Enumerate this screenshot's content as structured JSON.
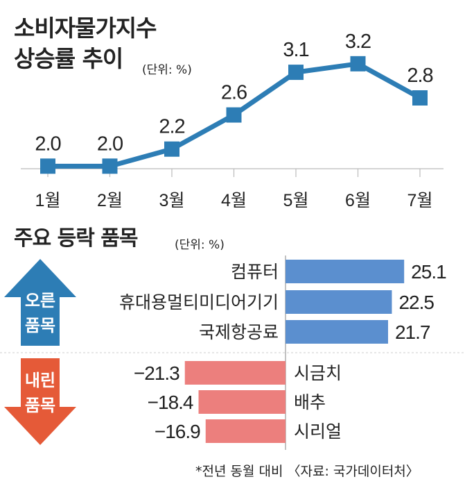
{
  "title_line1": "소비자물가지수",
  "title_line2": "상승률 추이",
  "unit_top": "(단위: %)",
  "section2_title": "주요 등락 품목",
  "unit_bottom": "(단위: %)",
  "footnote": "*전년 동월 대비 〈자료: 국가데이터처〉",
  "colors": {
    "line": "#2d7db5",
    "rise_bar": "#5b8fcf",
    "fall_bar": "#ec7f7d",
    "up_arrow": "#2d7db5",
    "down_arrow": "#e55a38"
  },
  "chart_data": [
    {
      "type": "line",
      "categories": [
        "1월",
        "2월",
        "3월",
        "4월",
        "5월",
        "6월",
        "7월"
      ],
      "values": [
        2.0,
        2.0,
        2.2,
        2.6,
        3.1,
        3.2,
        2.8
      ],
      "value_labels": [
        "2.0",
        "2.0",
        "2.2",
        "2.6",
        "3.1",
        "3.2",
        "2.8"
      ],
      "ylim": [
        1.97,
        3.28
      ],
      "grid": false
    },
    {
      "type": "bar",
      "orientation": "horizontal",
      "groups": [
        {
          "label_lines": [
            "오른",
            "품목"
          ],
          "direction": "up",
          "items": [
            {
              "name": "컴퓨터",
              "value": 25.1,
              "label": "25.1"
            },
            {
              "name": "휴대용멀티미디어기기",
              "value": 22.5,
              "label": "22.5"
            },
            {
              "name": "국제항공료",
              "value": 21.7,
              "label": "21.7"
            }
          ]
        },
        {
          "label_lines": [
            "내린",
            "품목"
          ],
          "direction": "down",
          "items": [
            {
              "name": "시금치",
              "value": -21.3,
              "label": "−21.3"
            },
            {
              "name": "배추",
              "value": -18.4,
              "label": "−18.4"
            },
            {
              "name": "시리얼",
              "value": -16.9,
              "label": "−16.9"
            }
          ]
        }
      ]
    }
  ]
}
